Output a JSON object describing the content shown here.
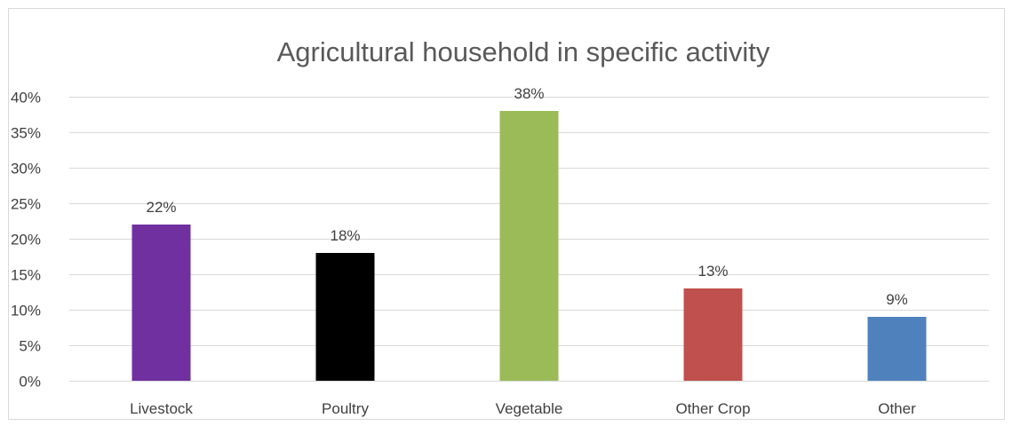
{
  "chart_data": {
    "type": "bar",
    "title": "Agricultural household in specific activity",
    "categories": [
      "Livestock",
      "Poultry",
      "Vegetable",
      "Other Crop",
      "Other"
    ],
    "values": [
      22,
      18,
      38,
      13,
      9
    ],
    "data_labels": [
      "22%",
      "18%",
      "38%",
      "13%",
      "9%"
    ],
    "colors": [
      "#7030a0",
      "#000000",
      "#9bbb59",
      "#c0504d",
      "#4f81bd"
    ],
    "ylim": [
      0,
      40
    ],
    "yticks": [
      0,
      5,
      10,
      15,
      20,
      25,
      30,
      35,
      40
    ],
    "ytick_labels": [
      "0%",
      "5%",
      "10%",
      "15%",
      "20%",
      "25%",
      "30%",
      "35%",
      "40%"
    ],
    "grid": true,
    "legend": "none",
    "xlabel": "",
    "ylabel": ""
  }
}
